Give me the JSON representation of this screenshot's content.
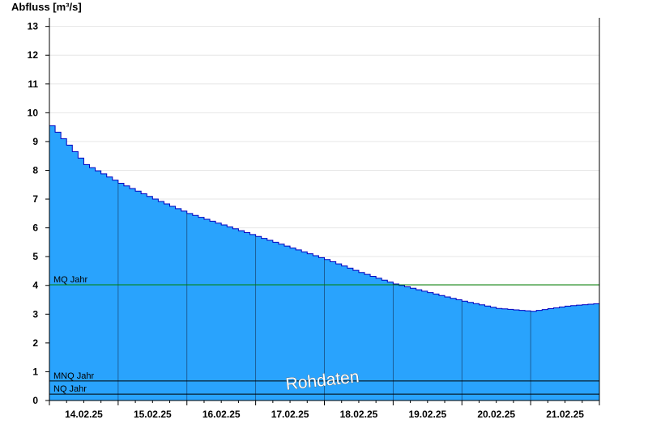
{
  "chart_data": {
    "type": "area",
    "title": "",
    "ylabel": "Abfluss [m³/s]",
    "xlabel": "",
    "ylim": [
      0,
      13.3
    ],
    "yticks": [
      0,
      1,
      2,
      3,
      4,
      5,
      6,
      7,
      8,
      9,
      10,
      11,
      12,
      13
    ],
    "x_start": "14.02.25 00:00",
    "x_end": "22.02.25 00:00",
    "x_tick_labels": [
      "14.02.25",
      "15.02.25",
      "16.02.25",
      "17.02.25",
      "18.02.25",
      "19.02.25",
      "20.02.25",
      "21.02.25"
    ],
    "grid": "horizontal",
    "fill_color": "#29a3fd",
    "line_color": "#0000c0",
    "series": [
      {
        "day_offsets": [
          0,
          0.5,
          1,
          1.5,
          2,
          2.5,
          3,
          3.5,
          4,
          4.5,
          5,
          5.5,
          6,
          6.5,
          7,
          7.5,
          8
        ],
        "values": [
          9.55,
          8.2,
          7.55,
          7.0,
          6.5,
          6.1,
          5.7,
          5.3,
          4.9,
          4.45,
          4.05,
          3.75,
          3.45,
          3.2,
          3.1,
          3.28,
          3.38
        ]
      }
    ],
    "reference_lines": [
      {
        "label": "MQ Jahr",
        "value": 4.02,
        "color": "#008000"
      },
      {
        "label": "MNQ Jahr",
        "value": 0.68,
        "color": "#000000"
      },
      {
        "label": "NQ Jahr",
        "value": 0.22,
        "color": "#000000"
      }
    ],
    "watermark": "Rohdaten"
  }
}
